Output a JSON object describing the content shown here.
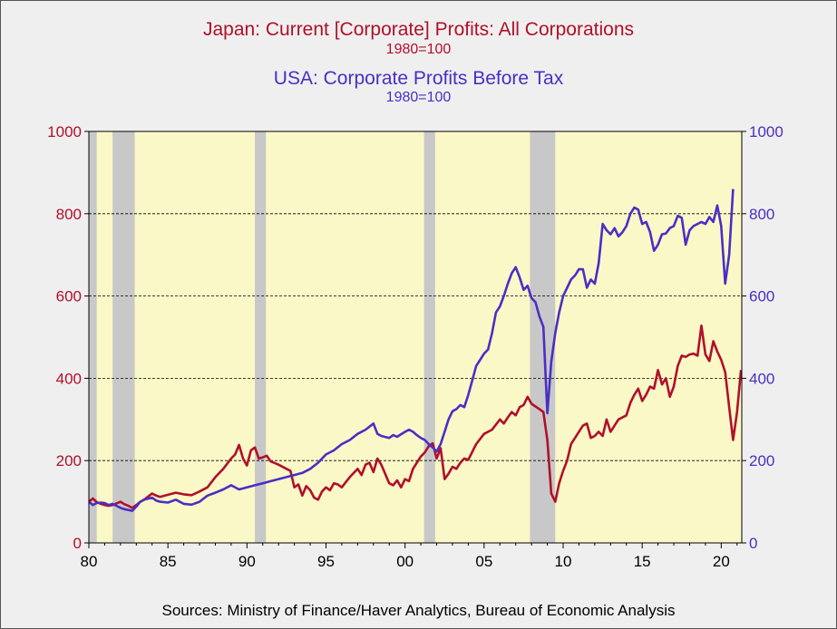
{
  "colors": {
    "japan": "#b0102a",
    "usa": "#4a2fc4",
    "plot_bg": "#fbf8c8",
    "recession": "#c8c8c8",
    "frame_bg": "#efefef"
  },
  "chart_data": {
    "type": "line",
    "title_japan": "Japan:  Current [Corporate] Profits: All Corporations",
    "subtitle_japan": "1980=100",
    "title_usa": "USA:  Corporate Profits Before Tax",
    "subtitle_usa": "1980=100",
    "x_tick_labels": [
      "80",
      "85",
      "90",
      "95",
      "00",
      "05",
      "10",
      "15",
      "20"
    ],
    "x_tick_years": [
      1980,
      1985,
      1990,
      1995,
      2000,
      2005,
      2010,
      2015,
      2020
    ],
    "xlim": [
      1980,
      2021.3
    ],
    "ylim_left": [
      0,
      1000
    ],
    "ylim_right": [
      0,
      1000
    ],
    "y_ticks_left": [
      "0",
      "200",
      "400",
      "600",
      "800",
      "1000"
    ],
    "y_ticks_right": [
      "0",
      "200",
      "400",
      "600",
      "800",
      "1000"
    ],
    "y_tick_values": [
      0,
      200,
      400,
      600,
      800,
      1000
    ],
    "gridlines": [
      200,
      400,
      600,
      800
    ],
    "recessions": [
      [
        1980.0,
        1980.5
      ],
      [
        1981.5,
        1982.9
      ],
      [
        1990.5,
        1991.2
      ],
      [
        2001.2,
        2001.9
      ],
      [
        2007.9,
        2009.5
      ]
    ],
    "series": [
      {
        "name": "Japan",
        "axis": "left",
        "points": [
          [
            1980.0,
            100
          ],
          [
            1980.25,
            108
          ],
          [
            1980.5,
            99
          ],
          [
            1980.75,
            95
          ],
          [
            1981.0,
            92
          ],
          [
            1981.25,
            90
          ],
          [
            1981.5,
            92
          ],
          [
            1981.75,
            96
          ],
          [
            1982.0,
            100
          ],
          [
            1982.25,
            94
          ],
          [
            1982.5,
            90
          ],
          [
            1982.75,
            85
          ],
          [
            1983.0,
            92
          ],
          [
            1983.25,
            100
          ],
          [
            1983.5,
            105
          ],
          [
            1984.0,
            120
          ],
          [
            1984.25,
            115
          ],
          [
            1984.5,
            112
          ],
          [
            1985.0,
            117
          ],
          [
            1985.5,
            122
          ],
          [
            1986.0,
            118
          ],
          [
            1986.5,
            116
          ],
          [
            1987.0,
            125
          ],
          [
            1987.5,
            135
          ],
          [
            1988.0,
            160
          ],
          [
            1988.5,
            180
          ],
          [
            1989.0,
            205
          ],
          [
            1989.25,
            215
          ],
          [
            1989.5,
            238
          ],
          [
            1989.75,
            205
          ],
          [
            1990.0,
            188
          ],
          [
            1990.25,
            225
          ],
          [
            1990.5,
            232
          ],
          [
            1990.75,
            205
          ],
          [
            1991.0,
            208
          ],
          [
            1991.25,
            212
          ],
          [
            1991.5,
            198
          ],
          [
            1992.0,
            190
          ],
          [
            1992.5,
            180
          ],
          [
            1992.75,
            175
          ],
          [
            1993.0,
            135
          ],
          [
            1993.25,
            142
          ],
          [
            1993.5,
            115
          ],
          [
            1993.75,
            138
          ],
          [
            1994.0,
            128
          ],
          [
            1994.25,
            110
          ],
          [
            1994.5,
            105
          ],
          [
            1994.75,
            125
          ],
          [
            1995.0,
            135
          ],
          [
            1995.25,
            128
          ],
          [
            1995.5,
            145
          ],
          [
            1995.75,
            142
          ],
          [
            1996.0,
            135
          ],
          [
            1996.5,
            160
          ],
          [
            1997.0,
            180
          ],
          [
            1997.25,
            165
          ],
          [
            1997.5,
            190
          ],
          [
            1997.75,
            195
          ],
          [
            1998.0,
            172
          ],
          [
            1998.25,
            205
          ],
          [
            1998.5,
            190
          ],
          [
            1999.0,
            145
          ],
          [
            1999.25,
            140
          ],
          [
            1999.5,
            152
          ],
          [
            1999.75,
            135
          ],
          [
            2000.0,
            155
          ],
          [
            2000.25,
            150
          ],
          [
            2000.5,
            180
          ],
          [
            2000.75,
            195
          ],
          [
            2001.0,
            210
          ],
          [
            2001.25,
            220
          ],
          [
            2001.5,
            235
          ],
          [
            2001.75,
            242
          ],
          [
            2002.0,
            205
          ],
          [
            2002.25,
            230
          ],
          [
            2002.5,
            155
          ],
          [
            2002.75,
            168
          ],
          [
            2003.0,
            185
          ],
          [
            2003.25,
            180
          ],
          [
            2003.5,
            195
          ],
          [
            2003.75,
            205
          ],
          [
            2004.0,
            202
          ],
          [
            2004.5,
            240
          ],
          [
            2005.0,
            265
          ],
          [
            2005.5,
            275
          ],
          [
            2006.0,
            300
          ],
          [
            2006.25,
            290
          ],
          [
            2006.5,
            305
          ],
          [
            2006.75,
            318
          ],
          [
            2007.0,
            310
          ],
          [
            2007.25,
            330
          ],
          [
            2007.5,
            335
          ],
          [
            2007.75,
            355
          ],
          [
            2008.0,
            338
          ],
          [
            2008.5,
            325
          ],
          [
            2008.75,
            318
          ],
          [
            2009.0,
            250
          ],
          [
            2009.25,
            120
          ],
          [
            2009.5,
            100
          ],
          [
            2009.75,
            145
          ],
          [
            2010.0,
            175
          ],
          [
            2010.25,
            200
          ],
          [
            2010.5,
            240
          ],
          [
            2010.75,
            255
          ],
          [
            2011.0,
            270
          ],
          [
            2011.25,
            285
          ],
          [
            2011.5,
            290
          ],
          [
            2011.75,
            255
          ],
          [
            2012.0,
            260
          ],
          [
            2012.25,
            270
          ],
          [
            2012.5,
            260
          ],
          [
            2012.75,
            300
          ],
          [
            2013.0,
            270
          ],
          [
            2013.5,
            300
          ],
          [
            2014.0,
            310
          ],
          [
            2014.25,
            340
          ],
          [
            2014.5,
            360
          ],
          [
            2014.75,
            375
          ],
          [
            2015.0,
            345
          ],
          [
            2015.25,
            360
          ],
          [
            2015.5,
            380
          ],
          [
            2015.75,
            375
          ],
          [
            2016.0,
            420
          ],
          [
            2016.25,
            385
          ],
          [
            2016.5,
            400
          ],
          [
            2016.75,
            355
          ],
          [
            2017.0,
            380
          ],
          [
            2017.25,
            430
          ],
          [
            2017.5,
            455
          ],
          [
            2017.75,
            452
          ],
          [
            2018.0,
            458
          ],
          [
            2018.25,
            460
          ],
          [
            2018.5,
            455
          ],
          [
            2018.75,
            528
          ],
          [
            2019.0,
            458
          ],
          [
            2019.25,
            442
          ],
          [
            2019.5,
            490
          ],
          [
            2019.75,
            465
          ],
          [
            2020.0,
            445
          ],
          [
            2020.25,
            415
          ],
          [
            2020.5,
            330
          ],
          [
            2020.75,
            250
          ],
          [
            2021.0,
            318
          ],
          [
            2021.25,
            420
          ]
        ]
      },
      {
        "name": "USA",
        "axis": "right",
        "points": [
          [
            1980.0,
            100
          ],
          [
            1980.25,
            92
          ],
          [
            1980.5,
            97
          ],
          [
            1980.75,
            98
          ],
          [
            1981.0,
            97
          ],
          [
            1981.25,
            92
          ],
          [
            1981.5,
            95
          ],
          [
            1981.75,
            90
          ],
          [
            1982.0,
            85
          ],
          [
            1982.25,
            82
          ],
          [
            1982.5,
            80
          ],
          [
            1982.75,
            78
          ],
          [
            1983.0,
            88
          ],
          [
            1983.25,
            100
          ],
          [
            1983.5,
            105
          ],
          [
            1984.0,
            110
          ],
          [
            1984.25,
            103
          ],
          [
            1984.5,
            100
          ],
          [
            1985.0,
            98
          ],
          [
            1985.5,
            105
          ],
          [
            1986.0,
            95
          ],
          [
            1986.5,
            93
          ],
          [
            1987.0,
            100
          ],
          [
            1987.5,
            115
          ],
          [
            1988.0,
            122
          ],
          [
            1988.5,
            130
          ],
          [
            1989.0,
            140
          ],
          [
            1989.5,
            130
          ],
          [
            1990.0,
            135
          ],
          [
            1990.5,
            140
          ],
          [
            1991.0,
            145
          ],
          [
            1991.5,
            150
          ],
          [
            1992.0,
            155
          ],
          [
            1992.5,
            160
          ],
          [
            1993.0,
            165
          ],
          [
            1993.5,
            170
          ],
          [
            1994.0,
            180
          ],
          [
            1994.5,
            195
          ],
          [
            1995.0,
            215
          ],
          [
            1995.5,
            225
          ],
          [
            1996.0,
            240
          ],
          [
            1996.5,
            250
          ],
          [
            1997.0,
            265
          ],
          [
            1997.5,
            275
          ],
          [
            1998.0,
            290
          ],
          [
            1998.25,
            265
          ],
          [
            1998.5,
            260
          ],
          [
            1999.0,
            255
          ],
          [
            1999.25,
            262
          ],
          [
            1999.5,
            258
          ],
          [
            2000.0,
            270
          ],
          [
            2000.25,
            275
          ],
          [
            2000.5,
            270
          ],
          [
            2000.75,
            262
          ],
          [
            2001.0,
            255
          ],
          [
            2001.25,
            250
          ],
          [
            2001.5,
            240
          ],
          [
            2001.75,
            232
          ],
          [
            2002.0,
            222
          ],
          [
            2002.25,
            240
          ],
          [
            2002.5,
            270
          ],
          [
            2002.75,
            300
          ],
          [
            2003.0,
            320
          ],
          [
            2003.25,
            325
          ],
          [
            2003.5,
            335
          ],
          [
            2003.75,
            330
          ],
          [
            2004.0,
            360
          ],
          [
            2004.25,
            395
          ],
          [
            2004.5,
            430
          ],
          [
            2004.75,
            445
          ],
          [
            2005.0,
            460
          ],
          [
            2005.25,
            470
          ],
          [
            2005.5,
            510
          ],
          [
            2005.75,
            560
          ],
          [
            2006.0,
            575
          ],
          [
            2006.25,
            600
          ],
          [
            2006.5,
            630
          ],
          [
            2006.75,
            655
          ],
          [
            2007.0,
            670
          ],
          [
            2007.25,
            645
          ],
          [
            2007.5,
            615
          ],
          [
            2007.75,
            625
          ],
          [
            2008.0,
            595
          ],
          [
            2008.25,
            585
          ],
          [
            2008.5,
            550
          ],
          [
            2008.75,
            525
          ],
          [
            2009.0,
            315
          ],
          [
            2009.25,
            440
          ],
          [
            2009.5,
            510
          ],
          [
            2009.75,
            560
          ],
          [
            2010.0,
            600
          ],
          [
            2010.25,
            620
          ],
          [
            2010.5,
            640
          ],
          [
            2010.75,
            650
          ],
          [
            2011.0,
            665
          ],
          [
            2011.25,
            665
          ],
          [
            2011.5,
            620
          ],
          [
            2011.75,
            640
          ],
          [
            2012.0,
            630
          ],
          [
            2012.25,
            680
          ],
          [
            2012.5,
            775
          ],
          [
            2012.75,
            760
          ],
          [
            2013.0,
            750
          ],
          [
            2013.25,
            765
          ],
          [
            2013.5,
            745
          ],
          [
            2013.75,
            755
          ],
          [
            2014.0,
            770
          ],
          [
            2014.25,
            800
          ],
          [
            2014.5,
            815
          ],
          [
            2014.75,
            810
          ],
          [
            2015.0,
            775
          ],
          [
            2015.25,
            780
          ],
          [
            2015.5,
            755
          ],
          [
            2015.75,
            710
          ],
          [
            2016.0,
            725
          ],
          [
            2016.25,
            750
          ],
          [
            2016.5,
            752
          ],
          [
            2016.75,
            765
          ],
          [
            2017.0,
            770
          ],
          [
            2017.25,
            795
          ],
          [
            2017.5,
            790
          ],
          [
            2017.75,
            725
          ],
          [
            2018.0,
            760
          ],
          [
            2018.25,
            770
          ],
          [
            2018.5,
            775
          ],
          [
            2018.75,
            780
          ],
          [
            2019.0,
            775
          ],
          [
            2019.25,
            792
          ],
          [
            2019.5,
            780
          ],
          [
            2019.75,
            820
          ],
          [
            2020.0,
            770
          ],
          [
            2020.25,
            630
          ],
          [
            2020.5,
            700
          ],
          [
            2020.75,
            860
          ]
        ]
      }
    ],
    "sources": "Sources:  Ministry of Finance/Haver Analytics, Bureau of Economic Analysis"
  }
}
